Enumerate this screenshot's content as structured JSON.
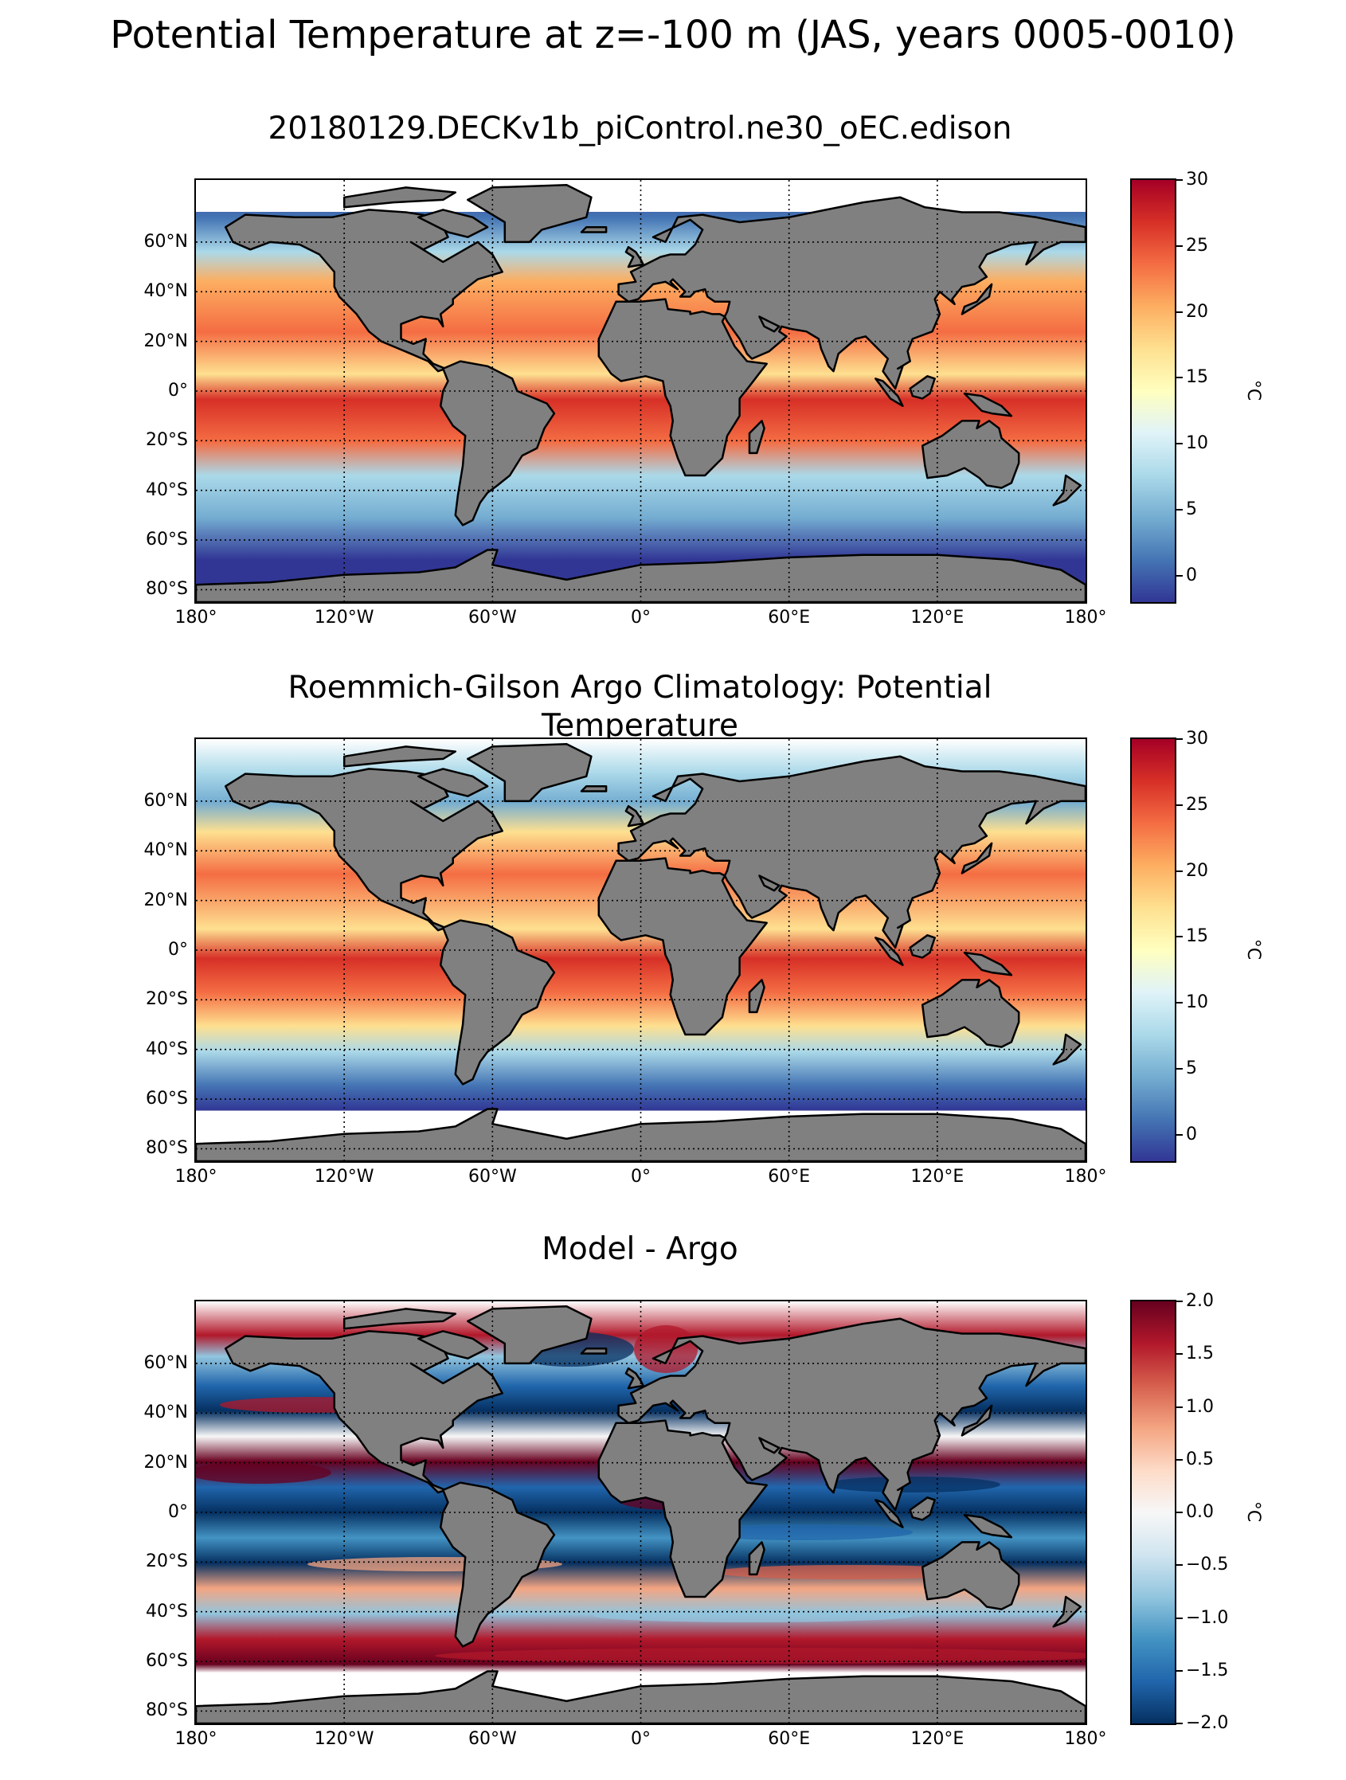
{
  "suptitle": "Potential Temperature at z=-100 m (JAS, years 0005-0010)",
  "colors": {
    "land": "#808080",
    "missing": "#ffffff",
    "rdylbu": [
      "#313695",
      "#4575b4",
      "#74add1",
      "#abd9e9",
      "#e0f3f8",
      "#ffffbf",
      "#fee090",
      "#fdae61",
      "#f46d43",
      "#d73027",
      "#a50026"
    ],
    "rdbu": [
      "#053061",
      "#2166ac",
      "#4393c3",
      "#92c5de",
      "#d1e5f0",
      "#f7f7f7",
      "#fddbc7",
      "#f4a582",
      "#d6604d",
      "#b2182b",
      "#67001f"
    ]
  },
  "axes": {
    "lat_labels": [
      "60°N",
      "40°N",
      "20°N",
      "0°",
      "20°S",
      "40°S",
      "60°S",
      "80°S"
    ],
    "lon_labels": [
      "180°",
      "120°W",
      "60°W",
      "0°",
      "60°E",
      "120°E",
      "180°"
    ]
  },
  "panels": [
    {
      "title": "20180129.DECKv1b_piControl.ne30_oEC.edison",
      "colormap": "RdYlBu_r",
      "colorbar": {
        "ticks": [
          "30",
          "25",
          "20",
          "15",
          "10",
          "5",
          "0"
        ],
        "vmin": -2,
        "vmax": 30,
        "unit": "°C"
      },
      "chart_data": {
        "type": "heatmap",
        "field": "Potential temperature (model)",
        "units": "°C",
        "range": [
          -2,
          30
        ]
      }
    },
    {
      "title": "Roemmich-Gilson Argo Climatology: Potential Temperature",
      "colormap": "RdYlBu_r",
      "colorbar": {
        "ticks": [
          "30",
          "25",
          "20",
          "15",
          "10",
          "5",
          "0"
        ],
        "vmin": -2,
        "vmax": 30,
        "unit": "°C"
      },
      "chart_data": {
        "type": "heatmap",
        "field": "Potential temperature (Argo)",
        "units": "°C",
        "range": [
          -2,
          30
        ]
      }
    },
    {
      "title": "Model - Argo",
      "colormap": "RdBu_r",
      "colorbar": {
        "ticks": [
          "2.0",
          "1.5",
          "1.0",
          "0.5",
          "0.0",
          "−0.5",
          "−1.0",
          "−1.5",
          "−2.0"
        ],
        "vmin": -2,
        "vmax": 2,
        "unit": "°C"
      },
      "chart_data": {
        "type": "heatmap",
        "field": "Potential temperature bias (Model - Argo)",
        "units": "°C",
        "range": [
          -2,
          2
        ]
      }
    }
  ]
}
